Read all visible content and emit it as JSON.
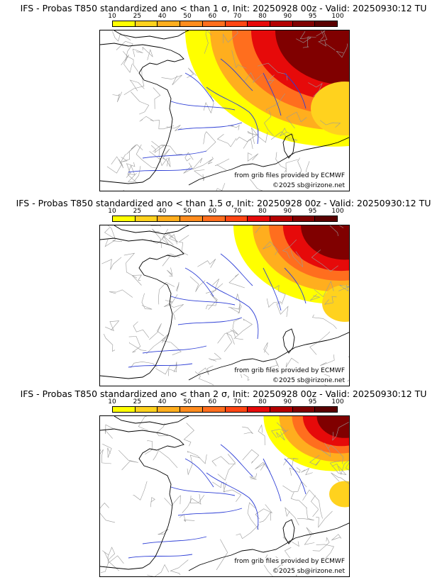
{
  "colorbar": {
    "ticks": [
      "10",
      "25",
      "40",
      "50",
      "60",
      "70",
      "80",
      "90",
      "95",
      "100"
    ],
    "colors": [
      "#ffff00",
      "#ffd21e",
      "#ffae1e",
      "#ff8c1e",
      "#ff6e1e",
      "#ff4614",
      "#e60a0a",
      "#b40000",
      "#800000",
      "#5a0000"
    ]
  },
  "panels": [
    {
      "title": "IFS - Probas T850  standardized ano < than 1 σ, Init: 20250928 00z - Valid: 20250930:12 TU",
      "credit_source": "from grib files provided by ECMWF",
      "credit_copyright": "©2025 sb@irizone.net",
      "intensity": 1.0
    },
    {
      "title": "IFS - Probas T850  standardized ano < than 1.5 σ, Init: 20250928 00z - Valid: 20250930:12 TU",
      "credit_source": "from grib files provided by ECMWF",
      "credit_copyright": "©2025 sb@irizone.net",
      "intensity": 0.6
    },
    {
      "title": "IFS - Probas T850  standardized ano < than 2 σ, Init: 20250928 00z - Valid: 20250930:12 TU",
      "credit_source": "from grib files provided by ECMWF",
      "credit_copyright": "©2025 sb@irizone.net",
      "intensity": 0.35
    }
  ]
}
